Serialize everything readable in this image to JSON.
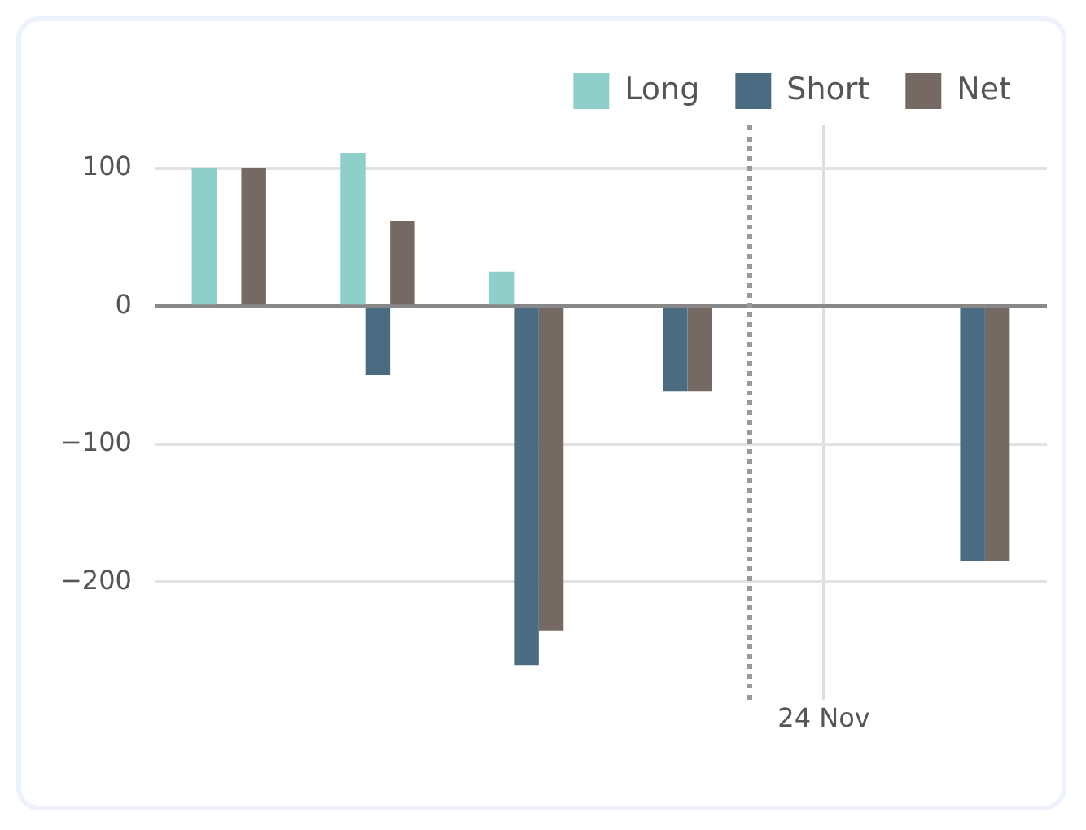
{
  "chart_data": {
    "type": "bar",
    "categories": [
      null,
      null,
      null,
      null,
      "24 Nov",
      null
    ],
    "series": [
      {
        "name": "Long",
        "color": "#8ecfc9",
        "values": [
          100,
          111,
          25,
          0,
          0,
          0
        ]
      },
      {
        "name": "Short",
        "color": "#4a6b82",
        "values": [
          0,
          -50,
          -260,
          -62,
          0,
          -185
        ]
      },
      {
        "name": "Net",
        "color": "#756a63",
        "values": [
          100,
          62,
          -235,
          -62,
          0,
          -185
        ]
      }
    ],
    "ylim": [
      -285,
      131
    ],
    "yticks": [
      {
        "value": -200,
        "label": "−200"
      },
      {
        "value": -100,
        "label": "−100"
      },
      0,
      100
    ],
    "grid": true,
    "legend": "top right"
  }
}
